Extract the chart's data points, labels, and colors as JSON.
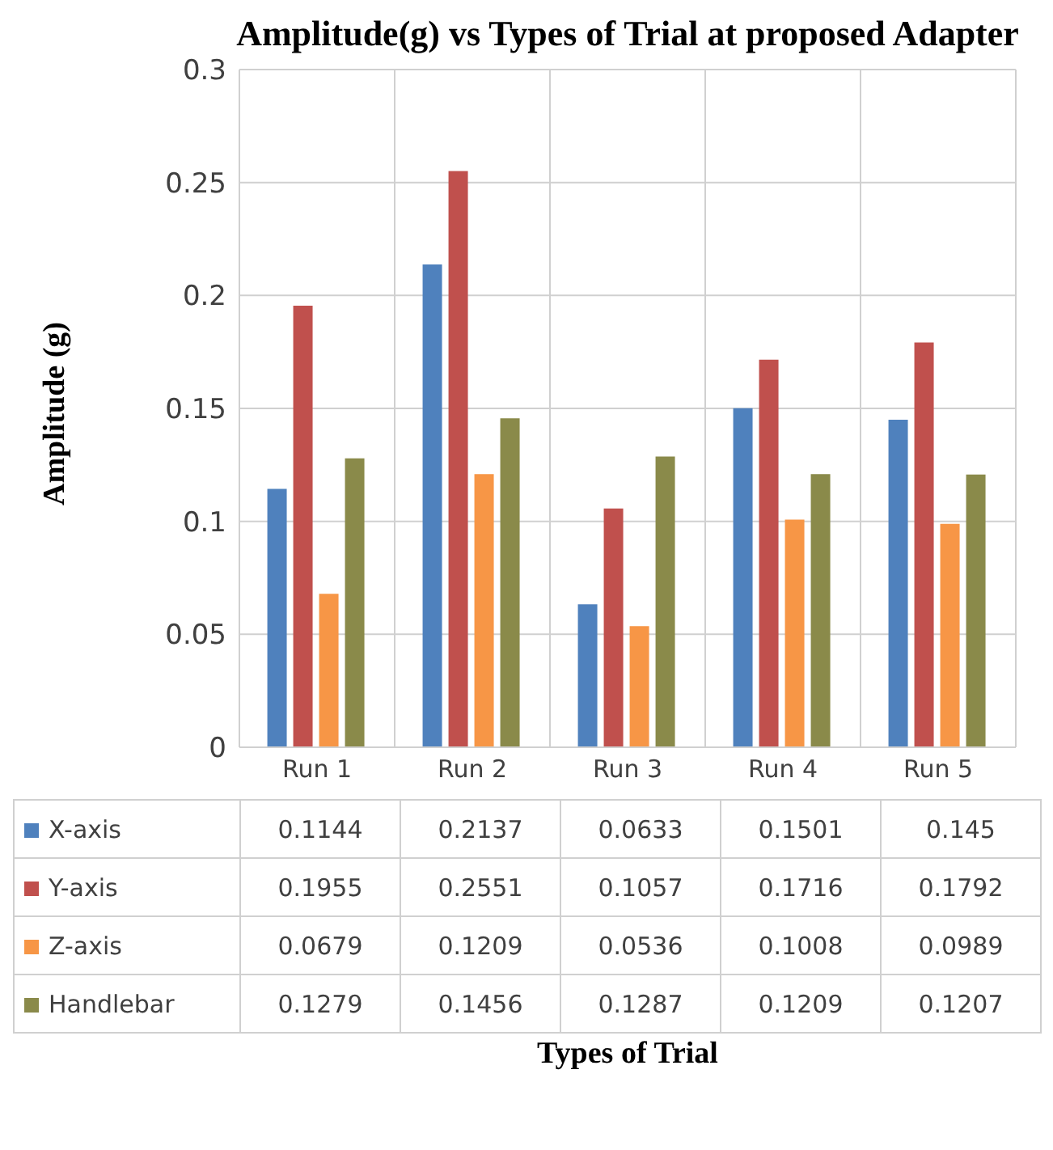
{
  "chart_data": {
    "type": "bar",
    "title": "Amplitude(g) vs Types of Trial at proposed Adapter",
    "annotations": [
      "Types of Trial"
    ],
    "ylabel": "Amplitude (g)",
    "categories": [
      "Run 1",
      "Run 2",
      "Run 3",
      "Run 4",
      "Run 5"
    ],
    "series": [
      {
        "name": "X-axis",
        "color": "#4f81bd",
        "values": [
          0.1144,
          0.2137,
          0.0633,
          0.1501,
          0.145
        ]
      },
      {
        "name": "Y-axis",
        "color": "#c0504d",
        "values": [
          0.1955,
          0.2551,
          0.1057,
          0.1716,
          0.1792
        ]
      },
      {
        "name": "Z-axis",
        "color": "#f79646",
        "values": [
          0.0679,
          0.1209,
          0.0536,
          0.1008,
          0.0989
        ]
      },
      {
        "name": "Handlebar",
        "color": "#8a8a4a",
        "values": [
          0.1279,
          0.1456,
          0.1287,
          0.1209,
          0.1207
        ]
      }
    ],
    "ylim": [
      0,
      0.3
    ],
    "yticks": [
      0,
      0.05,
      0.1,
      0.15,
      0.2,
      0.25,
      0.3
    ],
    "grid": true,
    "data_labels": true,
    "legend": "bottom"
  }
}
